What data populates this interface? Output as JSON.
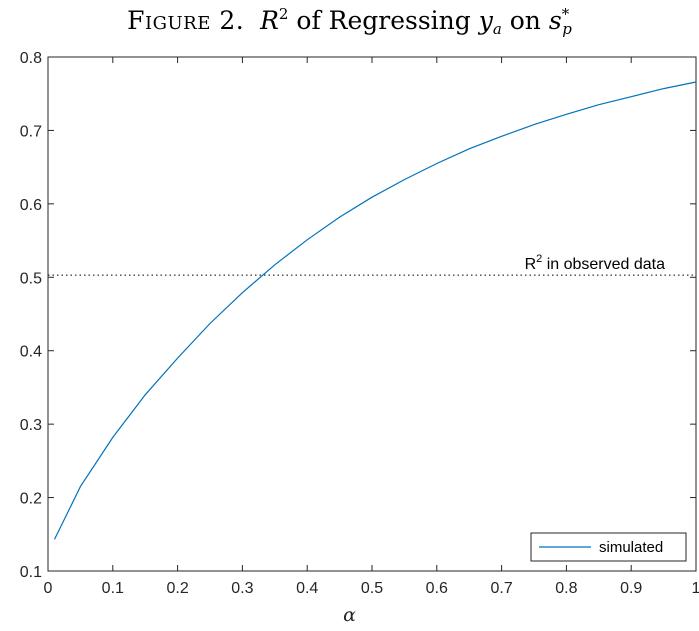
{
  "title": {
    "prefix": "Figure 2.",
    "r": "R",
    "exp": "2",
    "mid": " of Regressing ",
    "y": "y",
    "y_sub": "a",
    "on": " on ",
    "s": "s",
    "s_sup": "*",
    "s_sub": "p"
  },
  "chart_data": {
    "type": "line",
    "xlabel": "α",
    "ylabel": "",
    "xlim": [
      0,
      1
    ],
    "ylim": [
      0.1,
      0.8
    ],
    "xticks": [
      0,
      0.1,
      0.2,
      0.3,
      0.4,
      0.5,
      0.6,
      0.7,
      0.8,
      0.9,
      1
    ],
    "xtick_labels": [
      "0",
      "0.1",
      "0.2",
      "0.3",
      "0.4",
      "0.5",
      "0.6",
      "0.7",
      "0.8",
      "0.9",
      "1"
    ],
    "yticks": [
      0.1,
      0.2,
      0.3,
      0.4,
      0.5,
      0.6,
      0.7,
      0.8
    ],
    "ytick_labels": [
      "0.1",
      "0.2",
      "0.3",
      "0.4",
      "0.5",
      "0.6",
      "0.7",
      "0.8"
    ],
    "grid": false,
    "legend_position": "bottom-right",
    "series": [
      {
        "name": "simulated",
        "color": "#0072BD",
        "x": [
          0.01,
          0.05,
          0.1,
          0.15,
          0.2,
          0.25,
          0.3,
          0.35,
          0.4,
          0.45,
          0.5,
          0.55,
          0.6,
          0.65,
          0.7,
          0.75,
          0.8,
          0.85,
          0.9,
          0.95,
          1.0
        ],
        "y": [
          0.143,
          0.215,
          0.282,
          0.34,
          0.39,
          0.437,
          0.479,
          0.517,
          0.551,
          0.582,
          0.609,
          0.633,
          0.655,
          0.675,
          0.692,
          0.708,
          0.722,
          0.735,
          0.746,
          0.757,
          0.766
        ]
      }
    ],
    "reference_line": {
      "y": 0.503,
      "style": "dotted",
      "label_base": "R",
      "label_exp": "2",
      "label_rest": " in observed data"
    }
  }
}
